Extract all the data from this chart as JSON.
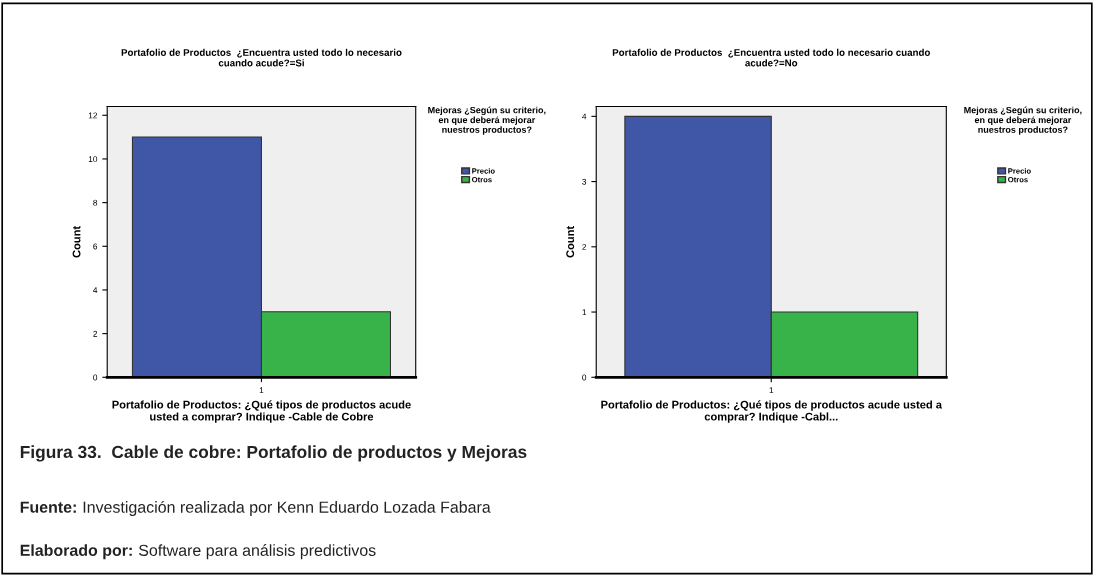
{
  "chart_data": [
    {
      "type": "bar",
      "title": "Portafolio de Productos  ¿Encuentra usted todo lo necesario cuando acude?=Si",
      "xlabel": "Portafolio de Productos: ¿Qué tipos de productos acude usted a comprar? Indique -Cable de Cobre",
      "ylabel": "Count",
      "legend_title": "Mejoras ¿Según su criterio, en que deberá mejorar nuestros productos?",
      "categories": [
        "1"
      ],
      "series": [
        {
          "name": "Precio",
          "color": "#3f57a6",
          "values": [
            11
          ]
        },
        {
          "name": "Otros",
          "color": "#37b34a",
          "values": [
            3
          ]
        }
      ],
      "ylim": [
        0,
        12.4
      ],
      "yticks": [
        0,
        2,
        4,
        6,
        8,
        10,
        12
      ],
      "grid": false,
      "legend": "top right",
      "annotations": [
        "Figura 33.  Cable de cobre: Portafolio de productos y Mejoras",
        "Fuente: Investigación realizada por Kenn Eduardo Lozada Fabara",
        "Elaborado por: Software para análisis predictivos"
      ]
    },
    {
      "type": "bar",
      "title": "Portafolio de Productos  ¿Encuentra usted todo lo necesario cuando acude?=No",
      "xlabel": "Portafolio de Productos: ¿Qué tipos de productos acude usted a comprar? Indique -Cabl...",
      "ylabel": "Count",
      "legend_title": "Mejoras ¿Según su criterio, en que deberá mejorar nuestros productos?",
      "categories": [
        "1"
      ],
      "series": [
        {
          "name": "Precio",
          "color": "#3f57a6",
          "values": [
            4
          ]
        },
        {
          "name": "Otros",
          "color": "#37b34a",
          "values": [
            1
          ]
        }
      ],
      "ylim": [
        0,
        4.15
      ],
      "yticks": [
        0,
        1,
        2,
        3,
        4
      ],
      "grid": false,
      "legend": "top right"
    }
  ]
}
